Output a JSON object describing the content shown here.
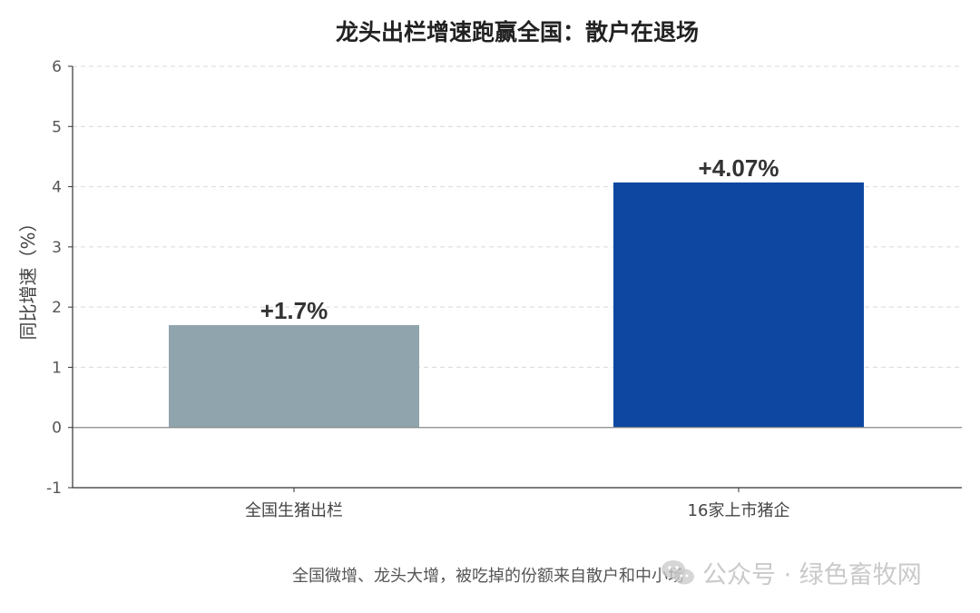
{
  "chart_data": {
    "type": "bar",
    "title": "龙头出栏增速跑赢全国：散户在退场",
    "ylabel": "同比增速（%）",
    "xlabel": "",
    "ylim": [
      -1,
      6
    ],
    "yticks": [
      -1,
      0,
      1,
      2,
      3,
      4,
      5,
      6
    ],
    "grid": true,
    "categories": [
      "全国生猪出栏",
      "16家上市猪企"
    ],
    "values": [
      1.7,
      4.07
    ],
    "value_labels": [
      "+1.7%",
      "+4.07%"
    ],
    "colors": [
      "#90a4ae",
      "#0d47a1"
    ]
  },
  "note": "全国微增、龙头大增，被吃掉的份额来自散户和中小场",
  "watermark": {
    "text": "公众号 · 绿色畜牧网",
    "icon": "wechat-icon",
    "color": "#b8b8b8"
  }
}
